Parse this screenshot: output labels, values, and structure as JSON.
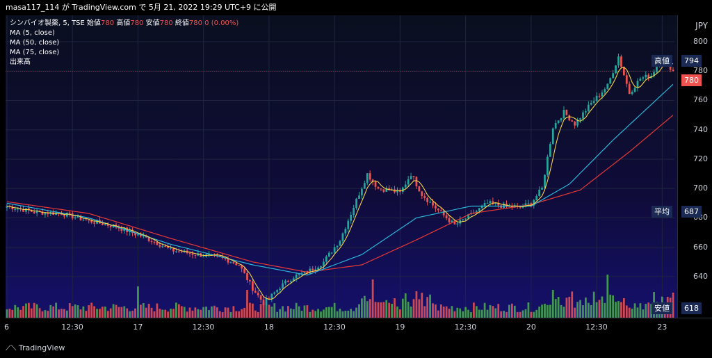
{
  "header": {
    "text": "masa117_114 が TradingView.com で 5月 21, 2022 19:29 UTC+9 に公開"
  },
  "legend": {
    "line1_prefix": "シンバイオ製薬, 5, TSE",
    "open_label": "始値",
    "open": "780",
    "high_label": "高値",
    "high": "780",
    "low_label": "安値",
    "low": "780",
    "close_label": "終値",
    "close": "780",
    "change": "0 (0.00%)",
    "ma5": "MA (5, close)",
    "ma50": "MA (50, close)",
    "ma75": "MA (75, close)",
    "volume": "出来高"
  },
  "currency": "JPY",
  "tags": {
    "high_name": "高値",
    "high_value": "794",
    "current_value": "780",
    "avg_name": "平均",
    "avg_value": "687",
    "low_name": "安値",
    "low_value": "618"
  },
  "footer": {
    "logo_text": "TradingView"
  },
  "colors": {
    "up": "#26a69a",
    "down": "#ef5350",
    "vol_up": "#4caf50",
    "vol_down": "#ef5350",
    "ma5": "#f5d547",
    "ma50": "#29b6d8",
    "ma75": "#e53935"
  },
  "chart_data": {
    "type": "candlestick",
    "ylim": [
      612,
      818
    ],
    "yticks": [
      640,
      660,
      680,
      700,
      720,
      740,
      760,
      780,
      800
    ],
    "xticks": [
      "6",
      "12:30",
      "17",
      "12:30",
      "18",
      "12:30",
      "19",
      "12:30",
      "20",
      "12:30",
      "23"
    ],
    "xtick_index": [
      0,
      24,
      48,
      72,
      96,
      120,
      144,
      168,
      192,
      216,
      240
    ],
    "n_bars": 245,
    "anchors": [
      [
        0,
        688
      ],
      [
        10,
        684
      ],
      [
        20,
        683
      ],
      [
        30,
        678
      ],
      [
        40,
        674
      ],
      [
        50,
        667
      ],
      [
        55,
        663
      ],
      [
        60,
        658
      ],
      [
        70,
        655
      ],
      [
        80,
        652
      ],
      [
        85,
        648
      ],
      [
        90,
        632
      ],
      [
        94,
        622
      ],
      [
        96,
        625
      ],
      [
        100,
        633
      ],
      [
        105,
        640
      ],
      [
        110,
        643
      ],
      [
        116,
        650
      ],
      [
        122,
        665
      ],
      [
        126,
        683
      ],
      [
        132,
        710
      ],
      [
        136,
        700
      ],
      [
        140,
        699
      ],
      [
        144,
        697
      ],
      [
        148,
        710
      ],
      [
        152,
        696
      ],
      [
        158,
        685
      ],
      [
        164,
        675
      ],
      [
        170,
        682
      ],
      [
        176,
        690
      ],
      [
        182,
        688
      ],
      [
        188,
        687
      ],
      [
        192,
        690
      ],
      [
        196,
        700
      ],
      [
        200,
        742
      ],
      [
        204,
        752
      ],
      [
        208,
        744
      ],
      [
        214,
        758
      ],
      [
        220,
        770
      ],
      [
        224,
        790
      ],
      [
        228,
        765
      ],
      [
        232,
        775
      ],
      [
        236,
        777
      ],
      [
        240,
        790
      ],
      [
        244,
        780
      ]
    ],
    "ma50_anchors": [
      [
        0,
        690
      ],
      [
        30,
        680
      ],
      [
        60,
        662
      ],
      [
        90,
        648
      ],
      [
        110,
        641
      ],
      [
        130,
        655
      ],
      [
        150,
        680
      ],
      [
        170,
        688
      ],
      [
        192,
        688
      ],
      [
        206,
        703
      ],
      [
        222,
        733
      ],
      [
        244,
        771
      ]
    ],
    "ma75_anchors": [
      [
        0,
        691
      ],
      [
        30,
        683
      ],
      [
        60,
        666
      ],
      [
        90,
        650
      ],
      [
        110,
        643
      ],
      [
        130,
        648
      ],
      [
        150,
        665
      ],
      [
        170,
        683
      ],
      [
        192,
        689
      ],
      [
        210,
        699
      ],
      [
        228,
        725
      ],
      [
        244,
        750
      ]
    ],
    "volume_max": 100,
    "volume_spikes": [
      [
        48,
        45
      ],
      [
        88,
        40
      ],
      [
        134,
        55
      ],
      [
        146,
        35
      ],
      [
        150,
        38
      ],
      [
        200,
        40
      ],
      [
        202,
        30
      ],
      [
        220,
        62
      ],
      [
        222,
        32
      ],
      [
        226,
        28
      ],
      [
        242,
        30
      ],
      [
        244,
        36
      ]
    ]
  }
}
